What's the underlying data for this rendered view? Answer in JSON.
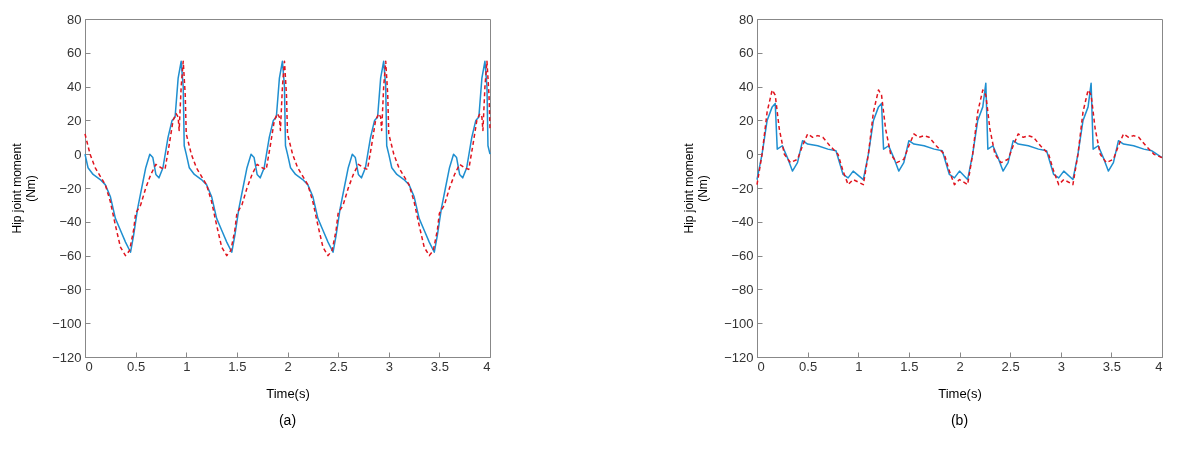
{
  "chart_data": [
    {
      "type": "line",
      "xlabel": "Time(s)",
      "ylabel": "Hip joint moment\n(Nm)",
      "xlim": [
        0,
        4
      ],
      "ylim": [
        -120,
        80
      ],
      "xticks": [
        0,
        0.5,
        1,
        1.5,
        2,
        2.5,
        3,
        3.5,
        4
      ],
      "yticks": [
        -120,
        -100,
        -80,
        -60,
        -40,
        -20,
        0,
        20,
        40,
        60,
        80
      ],
      "annotations": [
        "(a)"
      ],
      "series": [
        {
          "color": "#1f8fd0",
          "line_style": "solid",
          "x": [
            0,
            0.03,
            0.08,
            0.15,
            0.2,
            0.25,
            0.3,
            0.35,
            0.4,
            0.45,
            0.48,
            0.52,
            0.56,
            0.6,
            0.64,
            0.67,
            0.7,
            0.73,
            0.77,
            0.82,
            0.86,
            0.89,
            0.92,
            0.95,
            0.97,
            0.98,
            1,
            1.03,
            1.08,
            1.15,
            1.2,
            1.25,
            1.3,
            1.35,
            1.4,
            1.45,
            1.48,
            1.52,
            1.56,
            1.6,
            1.64,
            1.67,
            1.7,
            1.73,
            1.77,
            1.82,
            1.86,
            1.89,
            1.92,
            1.95,
            1.97,
            1.98,
            2,
            2.03,
            2.08,
            2.15,
            2.2,
            2.25,
            2.3,
            2.35,
            2.4,
            2.45,
            2.48,
            2.52,
            2.56,
            2.6,
            2.64,
            2.67,
            2.7,
            2.73,
            2.77,
            2.82,
            2.86,
            2.89,
            2.92,
            2.95,
            2.97,
            2.98,
            3,
            3.03,
            3.08,
            3.15,
            3.2,
            3.25,
            3.3,
            3.35,
            3.4,
            3.45,
            3.48,
            3.52,
            3.56,
            3.6,
            3.64,
            3.67,
            3.7,
            3.73,
            3.77,
            3.82,
            3.86,
            3.89,
            3.92,
            3.95,
            3.97,
            3.98,
            4
          ],
          "values": [
            0,
            -8,
            -12,
            -15,
            -18,
            -25,
            -38,
            -45,
            -52,
            -58,
            -48,
            -32,
            -20,
            -8,
            0,
            -2,
            -12,
            -14,
            -8,
            10,
            20,
            22,
            45,
            55,
            40,
            5,
            0,
            -8,
            -12,
            -15,
            -18,
            -25,
            -38,
            -45,
            -52,
            -58,
            -48,
            -32,
            -20,
            -8,
            0,
            -2,
            -12,
            -14,
            -8,
            10,
            20,
            22,
            45,
            55,
            40,
            5,
            0,
            -8,
            -12,
            -15,
            -18,
            -25,
            -38,
            -45,
            -52,
            -58,
            -48,
            -32,
            -20,
            -8,
            0,
            -2,
            -12,
            -14,
            -8,
            10,
            20,
            22,
            45,
            55,
            40,
            5,
            0,
            -8,
            -12,
            -15,
            -18,
            -25,
            -38,
            -45,
            -52,
            -58,
            -48,
            -32,
            -20,
            -8,
            0,
            -2,
            -12,
            -14,
            -8,
            10,
            20,
            22,
            45,
            55,
            40,
            5,
            0
          ]
        },
        {
          "color": "#e0141e",
          "line_style": "dashed",
          "x": [
            0,
            0.05,
            0.1,
            0.2,
            0.25,
            0.3,
            0.35,
            0.4,
            0.44,
            0.48,
            0.5,
            0.55,
            0.6,
            0.65,
            0.7,
            0.75,
            0.79,
            0.83,
            0.87,
            0.9,
            0.92,
            0.93,
            0.95,
            0.97,
            0.99,
            1,
            1.05,
            1.1,
            1.2,
            1.25,
            1.3,
            1.35,
            1.4,
            1.44,
            1.48,
            1.5,
            1.55,
            1.6,
            1.65,
            1.7,
            1.75,
            1.79,
            1.83,
            1.87,
            1.9,
            1.92,
            1.93,
            1.95,
            1.97,
            1.99,
            2,
            2.05,
            2.1,
            2.2,
            2.25,
            2.3,
            2.35,
            2.4,
            2.44,
            2.48,
            2.5,
            2.55,
            2.6,
            2.65,
            2.7,
            2.75,
            2.79,
            2.83,
            2.87,
            2.9,
            2.92,
            2.93,
            2.95,
            2.97,
            2.99,
            3,
            3.05,
            3.1,
            3.2,
            3.25,
            3.3,
            3.35,
            3.4,
            3.44,
            3.48,
            3.5,
            3.55,
            3.6,
            3.65,
            3.7,
            3.75,
            3.79,
            3.83,
            3.87,
            3.9,
            3.92,
            3.93,
            3.95,
            3.97,
            3.99,
            4
          ],
          "values": [
            12,
            0,
            -8,
            -18,
            -28,
            -42,
            -55,
            -60,
            -57,
            -45,
            -35,
            -30,
            -20,
            -12,
            -6,
            -8,
            -9,
            5,
            20,
            24,
            22,
            14,
            40,
            55,
            35,
            12,
            0,
            -8,
            -18,
            -28,
            -42,
            -55,
            -60,
            -57,
            -45,
            -35,
            -30,
            -20,
            -12,
            -6,
            -8,
            -9,
            5,
            20,
            24,
            22,
            14,
            40,
            55,
            35,
            12,
            0,
            -8,
            -18,
            -28,
            -42,
            -55,
            -60,
            -57,
            -45,
            -35,
            -30,
            -20,
            -12,
            -6,
            -8,
            -9,
            5,
            20,
            24,
            22,
            14,
            40,
            55,
            35,
            12,
            0,
            -8,
            -18,
            -28,
            -42,
            -55,
            -60,
            -57,
            -45,
            -35,
            -30,
            -20,
            -12,
            -6,
            -8,
            -9,
            5,
            20,
            24,
            22,
            14,
            40,
            55,
            35,
            15
          ]
        }
      ]
    },
    {
      "type": "line",
      "xlabel": "Time(s)",
      "ylabel": "Hip joint moment\n(Nm)",
      "xlim": [
        0,
        4
      ],
      "ylim": [
        -120,
        80
      ],
      "xticks": [
        0,
        0.5,
        1,
        1.5,
        2,
        2.5,
        3,
        3.5,
        4
      ],
      "yticks": [
        -120,
        -100,
        -80,
        -60,
        -40,
        -20,
        0,
        20,
        40,
        60,
        80
      ],
      "annotations": [
        "(b)"
      ],
      "series": [
        {
          "color": "#1f8fd0",
          "line_style": "solid",
          "x": [
            0,
            0.05,
            0.1,
            0.15,
            0.18,
            0.2,
            0.25,
            0.3,
            0.35,
            0.4,
            0.45,
            0.5,
            0.6,
            0.7,
            0.78,
            0.85,
            0.9,
            0.95,
            1.05,
            1.1,
            1.15,
            1.2,
            1.23,
            1.25,
            1.3,
            1.35,
            1.4,
            1.45,
            1.5,
            1.55,
            1.65,
            1.75,
            1.83,
            1.9,
            1.95,
            2.0,
            2.08,
            2.13,
            2.18,
            2.23,
            2.26,
            2.28,
            2.33,
            2.38,
            2.43,
            2.48,
            2.53,
            2.58,
            2.68,
            2.78,
            2.86,
            2.93,
            2.98,
            3.03,
            3.12,
            3.17,
            3.22,
            3.27,
            3.3,
            3.32,
            3.37,
            3.42,
            3.47,
            3.52,
            3.57,
            3.62,
            3.72,
            3.82,
            3.9,
            4.0
          ],
          "values": [
            -15,
            0,
            20,
            28,
            30,
            3,
            5,
            -2,
            -10,
            -5,
            8,
            6,
            5,
            3,
            2,
            -12,
            -14,
            -10,
            -15,
            0,
            20,
            28,
            30,
            3,
            5,
            -2,
            -10,
            -5,
            8,
            6,
            5,
            3,
            2,
            -12,
            -14,
            -10,
            -15,
            0,
            20,
            28,
            42,
            3,
            5,
            -2,
            -10,
            -5,
            8,
            6,
            5,
            3,
            2,
            -12,
            -14,
            -10,
            -15,
            0,
            20,
            28,
            42,
            3,
            5,
            -2,
            -10,
            -5,
            8,
            6,
            5,
            3,
            2,
            -2
          ]
        },
        {
          "color": "#e0141e",
          "line_style": "dotted",
          "x": [
            0,
            0.05,
            0.1,
            0.15,
            0.18,
            0.22,
            0.27,
            0.33,
            0.4,
            0.45,
            0.5,
            0.55,
            0.6,
            0.65,
            0.72,
            0.8,
            0.85,
            0.9,
            0.95,
            1.05,
            1.1,
            1.15,
            1.2,
            1.23,
            1.27,
            1.32,
            1.38,
            1.45,
            1.5,
            1.55,
            1.6,
            1.65,
            1.7,
            1.77,
            1.85,
            1.9,
            1.95,
            2.0,
            2.08,
            2.13,
            2.18,
            2.23,
            2.26,
            2.3,
            2.35,
            2.41,
            2.48,
            2.53,
            2.58,
            2.63,
            2.68,
            2.73,
            2.8,
            2.88,
            2.93,
            2.98,
            3.03,
            3.12,
            3.17,
            3.22,
            3.27,
            3.3,
            3.34,
            3.39,
            3.45,
            3.52,
            3.57,
            3.62,
            3.67,
            3.72,
            3.77,
            3.84,
            3.92,
            4.0
          ],
          "values": [
            -18,
            0,
            25,
            38,
            35,
            15,
            0,
            -5,
            -3,
            5,
            12,
            10,
            11,
            10,
            5,
            0,
            -10,
            -18,
            -15,
            -18,
            0,
            25,
            38,
            35,
            15,
            0,
            -5,
            -3,
            5,
            12,
            10,
            11,
            10,
            5,
            0,
            -10,
            -18,
            -15,
            -18,
            0,
            25,
            38,
            35,
            15,
            0,
            -5,
            -3,
            5,
            12,
            10,
            11,
            10,
            5,
            0,
            -10,
            -18,
            -15,
            -18,
            0,
            25,
            38,
            35,
            15,
            0,
            -5,
            -3,
            5,
            12,
            10,
            11,
            10,
            5,
            0,
            -2
          ]
        }
      ]
    }
  ]
}
